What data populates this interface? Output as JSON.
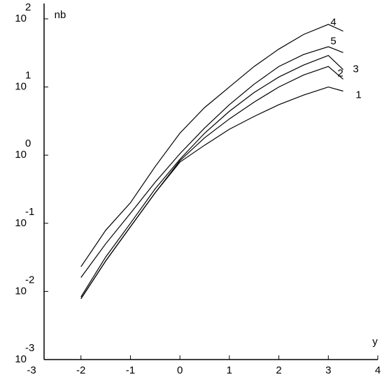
{
  "chart_data": {
    "type": "line",
    "log_y": true,
    "y_label": "nb",
    "x_label": "y",
    "x": [
      -2,
      -1.5,
      -1,
      -0.5,
      0,
      0.5,
      1,
      1.5,
      2,
      2.5,
      3,
      3.3
    ],
    "series": [
      {
        "name": "1",
        "color": "#000000",
        "values": [
          0.0078,
          0.028,
          0.089,
          0.28,
          0.79,
          1.4,
          2.4,
          3.7,
          5.5,
          7.6,
          10,
          8.7
        ]
      },
      {
        "name": "2",
        "color": "#000000",
        "values": [
          0.0078,
          0.028,
          0.089,
          0.28,
          0.83,
          1.8,
          3.4,
          6,
          10,
          15,
          20,
          13
        ]
      },
      {
        "name": "3",
        "color": "#000000",
        "values": [
          0.0083,
          0.032,
          0.1,
          0.32,
          0.87,
          2.1,
          4.4,
          8.3,
          14,
          21,
          29,
          18
        ]
      },
      {
        "name": "4",
        "color": "#000000",
        "values": [
          0.023,
          0.079,
          0.2,
          0.68,
          2.1,
          5,
          10,
          20,
          36,
          59,
          83,
          66
        ]
      },
      {
        "name": "5",
        "color": "#000000",
        "values": [
          0.016,
          0.05,
          0.14,
          0.4,
          1.05,
          2.5,
          5.5,
          11,
          20,
          30,
          39,
          32
        ]
      }
    ],
    "xlim": [
      -3,
      4
    ],
    "xticks": [
      -3,
      -2,
      -1,
      0,
      1,
      2,
      3,
      4
    ],
    "ylim": [
      0.001,
      100
    ],
    "yticks": [
      {
        "value": 0.001,
        "label": "10",
        "exponent": "-3"
      },
      {
        "value": 0.01,
        "label": "10",
        "exponent": "-2"
      },
      {
        "value": 0.1,
        "label": "10",
        "exponent": "-1"
      },
      {
        "value": 1,
        "label": "10",
        "exponent": "0"
      },
      {
        "value": 10,
        "label": "10",
        "exponent": "1"
      },
      {
        "value": 100,
        "label": "10",
        "exponent": "2"
      }
    ]
  }
}
